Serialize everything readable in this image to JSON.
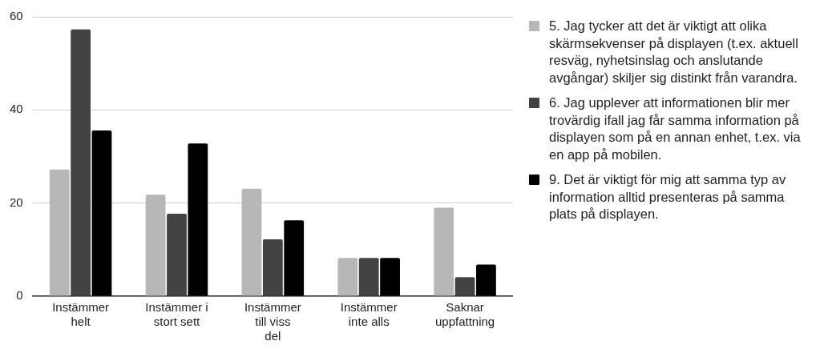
{
  "chart_data": {
    "type": "bar",
    "categories": [
      "Instämmer helt",
      "Instämmer i stort sett",
      "Instämmer till viss del",
      "Instämmer inte alls",
      "Saknar uppfattning"
    ],
    "series": [
      {
        "name": "5. Jag tycker att det är viktigt att olika skärmsekvenser på displayen (t.ex. aktuell resväg, nyhetsinslag och anslutande avgångar) skiljer sig distinkt från varandra.",
        "color": "#b7b7b7",
        "values": [
          27.2,
          21.8,
          23.1,
          8.2,
          19.0
        ]
      },
      {
        "name": "6. Jag upplever att informationen blir mer trovärdig ifall jag får samma information på displayen som på en annan enhet, t.ex. via en app på mobilen.",
        "color": "#434343",
        "values": [
          57.3,
          17.7,
          12.2,
          8.2,
          4.1
        ]
      },
      {
        "name": "9. Det är viktigt för mig att samma typ av information alltid presenteras på samma plats på displayen.",
        "color": "#000000",
        "values": [
          35.6,
          32.8,
          16.3,
          8.2,
          6.8
        ]
      }
    ],
    "ylim": [
      0,
      60
    ],
    "yticks": [
      0,
      20,
      40,
      60
    ],
    "grid": "y",
    "legend": "right"
  }
}
